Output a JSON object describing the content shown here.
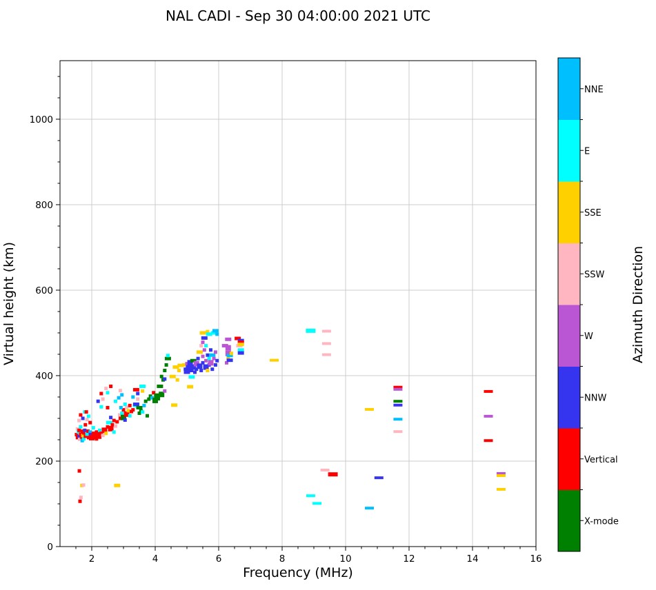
{
  "chart_data": {
    "type": "scatter",
    "title": "NAL CADI - Sep 30 04:00:00 2021 UTC",
    "xlabel": "Frequency (MHz)",
    "ylabel": "Virtual height (km)",
    "xlim": [
      1,
      16
    ],
    "ylim": [
      0,
      1137
    ],
    "xticks": [
      2,
      4,
      6,
      8,
      10,
      12,
      14,
      16
    ],
    "yticks": [
      0,
      200,
      400,
      600,
      800,
      1000
    ],
    "x_minor_step": 0.5,
    "y_minor_step": 50,
    "grid": true,
    "grid_color": "#cccccc",
    "frame_color": "#000000",
    "background_color": "#ffffff",
    "colorbar": {
      "label": "Azimuth Direction",
      "categories_bottom_to_top": [
        "X",
        "V",
        "NNW",
        "W",
        "SSW",
        "SSE",
        "E",
        "NNE"
      ]
    },
    "directions": {
      "NNE": {
        "label": "NNE",
        "color": "#00BFFF"
      },
      "E": {
        "label": "E",
        "color": "#00FFFF"
      },
      "SSE": {
        "label": "SSE",
        "color": "#FFD000"
      },
      "SSW": {
        "label": "SSW",
        "color": "#FFB6C1"
      },
      "W": {
        "label": "W",
        "color": "#BA55D3"
      },
      "NNW": {
        "label": "NNW",
        "color": "#3535F0"
      },
      "V": {
        "label": "Vertical",
        "color": "#FF0000"
      },
      "X": {
        "label": "X-mode",
        "color": "#008000"
      }
    },
    "points": [
      [
        1.52,
        262,
        "V",
        "s"
      ],
      [
        1.55,
        255,
        "V",
        "s"
      ],
      [
        1.55,
        275,
        "SSW",
        "s"
      ],
      [
        1.58,
        268,
        "E",
        "s"
      ],
      [
        1.6,
        258,
        "NNW",
        "s"
      ],
      [
        1.6,
        272,
        "V",
        "s"
      ],
      [
        1.62,
        251,
        "SSW",
        "s"
      ],
      [
        1.65,
        263,
        "V",
        "s"
      ],
      [
        1.65,
        280,
        "E",
        "s"
      ],
      [
        1.68,
        256,
        "V",
        "s"
      ],
      [
        1.7,
        270,
        "V",
        "s"
      ],
      [
        1.7,
        248,
        "NNE",
        "s"
      ],
      [
        1.72,
        260,
        "SSE",
        "s"
      ],
      [
        1.75,
        266,
        "V",
        "s"
      ],
      [
        1.75,
        252,
        "E",
        "s"
      ],
      [
        1.78,
        272,
        "NNW",
        "s"
      ],
      [
        1.8,
        258,
        "V",
        "s"
      ],
      [
        1.8,
        285,
        "V",
        "s"
      ],
      [
        1.85,
        263,
        "E",
        "s"
      ],
      [
        1.85,
        297,
        "SSW",
        "s"
      ],
      [
        1.88,
        270,
        "V",
        "s"
      ],
      [
        1.9,
        255,
        "V",
        "s"
      ],
      [
        1.9,
        305,
        "E",
        "s"
      ],
      [
        1.95,
        268,
        "NNE",
        "s"
      ],
      [
        1.95,
        290,
        "V",
        "s"
      ],
      [
        1.6,
        295,
        "SSW",
        "s"
      ],
      [
        1.65,
        308,
        "V",
        "s"
      ],
      [
        1.72,
        300,
        "NNW",
        "s"
      ],
      [
        1.78,
        315,
        "E",
        "s"
      ],
      [
        1.83,
        315,
        "V",
        "s"
      ],
      [
        2.0,
        262,
        "NNW",
        "m"
      ],
      [
        2.0,
        255,
        "V",
        "b"
      ],
      [
        2.05,
        265,
        "V",
        "s"
      ],
      [
        2.1,
        258,
        "V",
        "b"
      ],
      [
        2.15,
        252,
        "V",
        "s"
      ],
      [
        2.15,
        268,
        "V",
        "s"
      ],
      [
        2.2,
        262,
        "V",
        "b"
      ],
      [
        2.25,
        256,
        "V",
        "s"
      ],
      [
        2.25,
        272,
        "E",
        "s"
      ],
      [
        2.3,
        265,
        "V",
        "s"
      ],
      [
        2.05,
        278,
        "E",
        "s"
      ],
      [
        2.35,
        260,
        "SSW",
        "s"
      ],
      [
        2.2,
        340,
        "NNW",
        "s"
      ],
      [
        2.3,
        327,
        "E",
        "s"
      ],
      [
        2.35,
        345,
        "SSW",
        "s"
      ],
      [
        2.3,
        358,
        "V",
        "s"
      ],
      [
        2.45,
        370,
        "SSW",
        "s"
      ],
      [
        2.5,
        360,
        "E",
        "s"
      ],
      [
        2.5,
        325,
        "V",
        "s"
      ],
      [
        2.4,
        272,
        "V",
        "b"
      ],
      [
        2.45,
        265,
        "SSE",
        "s"
      ],
      [
        2.5,
        280,
        "V",
        "s"
      ],
      [
        2.55,
        290,
        "E",
        "m"
      ],
      [
        2.6,
        276,
        "V",
        "b"
      ],
      [
        2.65,
        285,
        "V",
        "s"
      ],
      [
        2.7,
        295,
        "V",
        "s"
      ],
      [
        2.7,
        268,
        "E",
        "s"
      ],
      [
        2.75,
        282,
        "SSW",
        "s"
      ],
      [
        2.8,
        292,
        "V",
        "s"
      ],
      [
        2.6,
        302,
        "NNW",
        "s"
      ],
      [
        2.75,
        340,
        "E",
        "s"
      ],
      [
        2.85,
        348,
        "NNE",
        "s"
      ],
      [
        2.6,
        375,
        "V",
        "s"
      ],
      [
        2.9,
        365,
        "SSW",
        "s"
      ],
      [
        2.95,
        355,
        "NNE",
        "s"
      ],
      [
        2.88,
        308,
        "SSW",
        "s"
      ],
      [
        2.9,
        300,
        "V",
        "s"
      ],
      [
        2.95,
        312,
        "E",
        "s"
      ],
      [
        3.0,
        302,
        "X",
        "b"
      ],
      [
        3.0,
        320,
        "V",
        "s"
      ],
      [
        3.05,
        296,
        "NNW",
        "s"
      ],
      [
        3.1,
        310,
        "V",
        "b"
      ],
      [
        3.1,
        326,
        "SSW",
        "s"
      ],
      [
        3.15,
        318,
        "SSE",
        "s"
      ],
      [
        3.2,
        306,
        "E",
        "s"
      ],
      [
        3.2,
        330,
        "V",
        "s"
      ],
      [
        2.92,
        325,
        "NNE",
        "s"
      ],
      [
        3.25,
        316,
        "V",
        "s"
      ],
      [
        3.05,
        333,
        "E",
        "s"
      ],
      [
        3.3,
        320,
        "V",
        "s"
      ],
      [
        3.3,
        350,
        "NNE",
        "s"
      ],
      [
        3.35,
        330,
        "E",
        "s"
      ],
      [
        3.4,
        333,
        "NNW",
        "m"
      ],
      [
        3.4,
        367,
        "V",
        "m"
      ],
      [
        3.45,
        345,
        "SSW",
        "s"
      ],
      [
        3.45,
        358,
        "NNW",
        "s"
      ],
      [
        3.5,
        312,
        "X",
        "s"
      ],
      [
        3.5,
        325,
        "X",
        "m"
      ],
      [
        3.55,
        318,
        "X",
        "s"
      ],
      [
        3.6,
        315,
        "E",
        "s"
      ],
      [
        3.6,
        364,
        "SSE",
        "s"
      ],
      [
        3.6,
        375,
        "E",
        "m"
      ],
      [
        3.65,
        330,
        "NNE",
        "s"
      ],
      [
        3.7,
        340,
        "X",
        "s"
      ],
      [
        3.75,
        306,
        "X",
        "s"
      ],
      [
        3.8,
        345,
        "X",
        "s"
      ],
      [
        3.85,
        352,
        "X",
        "s"
      ],
      [
        3.9,
        348,
        "NNE",
        "s"
      ],
      [
        3.95,
        360,
        "V",
        "s"
      ],
      [
        4.0,
        342,
        "X",
        "b"
      ],
      [
        4.05,
        352,
        "X",
        "b"
      ],
      [
        4.1,
        346,
        "X",
        "s"
      ],
      [
        4.15,
        375,
        "X",
        "m"
      ],
      [
        4.2,
        356,
        "X",
        "b"
      ],
      [
        4.2,
        398,
        "X",
        "s"
      ],
      [
        4.25,
        390,
        "X",
        "s"
      ],
      [
        4.3,
        392,
        "NNW",
        "s"
      ],
      [
        4.3,
        412,
        "X",
        "s"
      ],
      [
        4.3,
        364,
        "W",
        "s"
      ],
      [
        4.35,
        425,
        "X",
        "s"
      ],
      [
        4.4,
        440,
        "X",
        "m"
      ],
      [
        4.4,
        447,
        "E",
        "s"
      ],
      [
        4.6,
        331,
        "SSE",
        "m"
      ],
      [
        4.55,
        398,
        "SSE",
        "m"
      ],
      [
        4.7,
        390,
        "SSE",
        "s"
      ],
      [
        5.15,
        397,
        "E",
        "m"
      ],
      [
        5.1,
        374,
        "SSE",
        "m"
      ],
      [
        4.65,
        420,
        "SSE",
        "m"
      ],
      [
        4.75,
        412,
        "SSE",
        "s"
      ],
      [
        4.8,
        424,
        "SSE",
        "m"
      ],
      [
        4.9,
        425,
        "SSE",
        "s"
      ],
      [
        4.95,
        415,
        "NNW",
        "s"
      ],
      [
        5.0,
        408,
        "NNW",
        "m"
      ],
      [
        5.0,
        428,
        "W",
        "s"
      ],
      [
        5.05,
        418,
        "NNW",
        "b"
      ],
      [
        5.1,
        430,
        "NNW",
        "b"
      ],
      [
        5.15,
        412,
        "NNW",
        "s"
      ],
      [
        5.2,
        435,
        "X",
        "m"
      ],
      [
        5.2,
        420,
        "NNW",
        "b"
      ],
      [
        5.25,
        408,
        "NNW",
        "s"
      ],
      [
        5.3,
        428,
        "W",
        "b"
      ],
      [
        5.3,
        415,
        "NNW",
        "s"
      ],
      [
        5.35,
        440,
        "NNW",
        "s"
      ],
      [
        5.4,
        422,
        "NNW",
        "b"
      ],
      [
        5.4,
        455,
        "SSE",
        "m"
      ],
      [
        5.45,
        412,
        "NNW",
        "s"
      ],
      [
        5.45,
        470,
        "SSW",
        "s"
      ],
      [
        5.5,
        430,
        "NNW",
        "s"
      ],
      [
        5.5,
        445,
        "W",
        "s"
      ],
      [
        5.5,
        478,
        "W",
        "s"
      ],
      [
        5.55,
        460,
        "W",
        "s"
      ],
      [
        5.55,
        488,
        "NNW",
        "m"
      ],
      [
        5.5,
        500,
        "SSE",
        "m"
      ],
      [
        5.6,
        420,
        "NNW",
        "b"
      ],
      [
        5.6,
        435,
        "W",
        "s"
      ],
      [
        5.6,
        470,
        "E",
        "s"
      ],
      [
        5.65,
        412,
        "SSE",
        "s"
      ],
      [
        5.65,
        448,
        "NNW",
        "s"
      ],
      [
        5.65,
        503,
        "SSE",
        "s"
      ],
      [
        5.7,
        425,
        "NNW",
        "s"
      ],
      [
        5.7,
        440,
        "E",
        "s"
      ],
      [
        5.7,
        497,
        "E",
        "m"
      ],
      [
        5.75,
        430,
        "W",
        "b"
      ],
      [
        5.75,
        460,
        "NNW",
        "s"
      ],
      [
        5.8,
        448,
        "NNE",
        "m"
      ],
      [
        5.8,
        415,
        "NNW",
        "s"
      ],
      [
        5.85,
        440,
        "W",
        "s"
      ],
      [
        5.85,
        500,
        "E",
        "m"
      ],
      [
        5.9,
        425,
        "NNW",
        "s"
      ],
      [
        5.9,
        455,
        "W",
        "s"
      ],
      [
        5.9,
        505,
        "NNE",
        "m"
      ],
      [
        5.95,
        435,
        "NNW",
        "s"
      ],
      [
        5.95,
        497,
        "NNE",
        "s"
      ],
      [
        6.2,
        470,
        "W",
        "m"
      ],
      [
        6.25,
        430,
        "W",
        "s"
      ],
      [
        6.3,
        485,
        "W",
        "m"
      ],
      [
        6.3,
        452,
        "W",
        "b"
      ],
      [
        6.3,
        465,
        "W",
        "b"
      ],
      [
        6.3,
        440,
        "SSE",
        "s"
      ],
      [
        6.35,
        447,
        "NNE",
        "m"
      ],
      [
        6.35,
        436,
        "NNW",
        "m"
      ],
      [
        6.4,
        452,
        "SSE",
        "s"
      ],
      [
        6.6,
        487,
        "V",
        "m"
      ],
      [
        6.65,
        470,
        "SSW",
        "m"
      ],
      [
        6.7,
        482,
        "NNW",
        "m"
      ],
      [
        6.7,
        478,
        "V",
        "m"
      ],
      [
        6.7,
        473,
        "SSE",
        "m"
      ],
      [
        6.7,
        460,
        "E",
        "m"
      ],
      [
        6.7,
        453,
        "NNW",
        "m"
      ],
      [
        7.75,
        436,
        "SSE",
        "w"
      ],
      [
        8.9,
        505,
        "E",
        "W"
      ],
      [
        9.4,
        504,
        "SSW",
        "w"
      ],
      [
        9.4,
        475,
        "SSW",
        "w"
      ],
      [
        9.4,
        449,
        "SSW",
        "w"
      ],
      [
        9.35,
        179,
        "SSW",
        "w"
      ],
      [
        9.6,
        169,
        "V",
        "W"
      ],
      [
        8.9,
        119,
        "E",
        "w"
      ],
      [
        9.1,
        101,
        "E",
        "w"
      ],
      [
        10.75,
        321,
        "SSE",
        "w"
      ],
      [
        10.75,
        90,
        "NNE",
        "w"
      ],
      [
        11.05,
        161,
        "NNW",
        "w"
      ],
      [
        11.65,
        373,
        "V",
        "w"
      ],
      [
        11.65,
        368,
        "W",
        "w"
      ],
      [
        11.65,
        340,
        "X",
        "w"
      ],
      [
        11.65,
        331,
        "NNW",
        "w"
      ],
      [
        11.65,
        298,
        "NNE",
        "w"
      ],
      [
        11.65,
        269,
        "SSW",
        "w"
      ],
      [
        14.5,
        363,
        "V",
        "w"
      ],
      [
        14.5,
        305,
        "W",
        "w"
      ],
      [
        14.5,
        248,
        "V",
        "w"
      ],
      [
        14.9,
        171,
        "W",
        "w"
      ],
      [
        14.9,
        166,
        "SSE",
        "w"
      ],
      [
        14.9,
        134,
        "SSE",
        "w"
      ],
      [
        1.61,
        177,
        "V",
        "s"
      ],
      [
        1.69,
        143,
        "SSE",
        "s"
      ],
      [
        1.74,
        144,
        "SSW",
        "s"
      ],
      [
        2.8,
        143,
        "SSE",
        "m"
      ],
      [
        1.66,
        115,
        "SSW",
        "s"
      ],
      [
        1.63,
        106,
        "V",
        "s"
      ]
    ]
  }
}
